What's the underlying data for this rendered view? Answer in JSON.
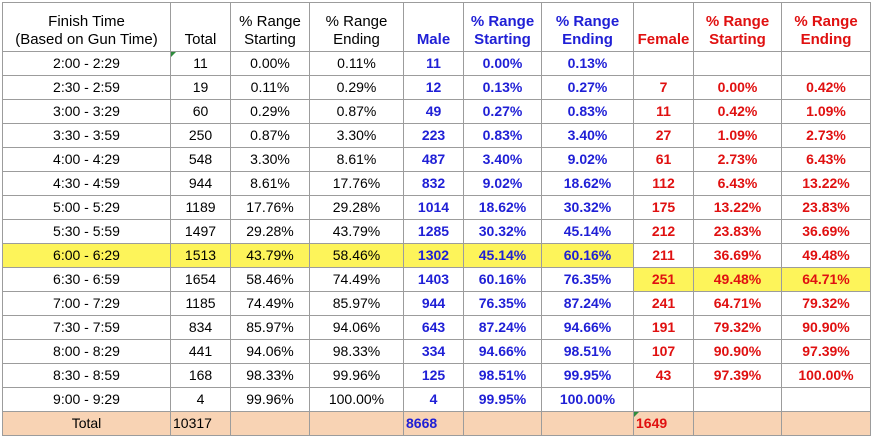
{
  "headers": {
    "finish_time_line1": "Finish Time",
    "finish_time_line2": "(Based on Gun Time)",
    "total": "Total",
    "range_start_line1": "% Range",
    "range_start_line2": "Starting",
    "range_end_line1": "% Range",
    "range_end_line2": "Ending",
    "male": "Male",
    "male_range_start_line1": "% Range",
    "male_range_start_line2": "Starting",
    "male_range_end_line1": "% Range",
    "male_range_end_line2": "Ending",
    "female": "Female",
    "female_range_start_line1": "% Range",
    "female_range_start_line2": "Starting",
    "female_range_end_line1": "% Range",
    "female_range_end_line2": "Ending"
  },
  "rows": [
    {
      "time": "2:00 - 2:29",
      "total": "11",
      "start": "0.00%",
      "end": "0.11%",
      "male": "11",
      "m_start": "0.00%",
      "m_end": "0.13%",
      "female": "",
      "f_start": "",
      "f_end": ""
    },
    {
      "time": "2:30 - 2:59",
      "total": "19",
      "start": "0.11%",
      "end": "0.29%",
      "male": "12",
      "m_start": "0.13%",
      "m_end": "0.27%",
      "female": "7",
      "f_start": "0.00%",
      "f_end": "0.42%"
    },
    {
      "time": "3:00 - 3:29",
      "total": "60",
      "start": "0.29%",
      "end": "0.87%",
      "male": "49",
      "m_start": "0.27%",
      "m_end": "0.83%",
      "female": "11",
      "f_start": "0.42%",
      "f_end": "1.09%"
    },
    {
      "time": "3:30 - 3:59",
      "total": "250",
      "start": "0.87%",
      "end": "3.30%",
      "male": "223",
      "m_start": "0.83%",
      "m_end": "3.40%",
      "female": "27",
      "f_start": "1.09%",
      "f_end": "2.73%"
    },
    {
      "time": "4:00 - 4:29",
      "total": "548",
      "start": "3.30%",
      "end": "8.61%",
      "male": "487",
      "m_start": "3.40%",
      "m_end": "9.02%",
      "female": "61",
      "f_start": "2.73%",
      "f_end": "6.43%"
    },
    {
      "time": "4:30 - 4:59",
      "total": "944",
      "start": "8.61%",
      "end": "17.76%",
      "male": "832",
      "m_start": "9.02%",
      "m_end": "18.62%",
      "female": "112",
      "f_start": "6.43%",
      "f_end": "13.22%"
    },
    {
      "time": "5:00 - 5:29",
      "total": "1189",
      "start": "17.76%",
      "end": "29.28%",
      "male": "1014",
      "m_start": "18.62%",
      "m_end": "30.32%",
      "female": "175",
      "f_start": "13.22%",
      "f_end": "23.83%"
    },
    {
      "time": "5:30 - 5:59",
      "total": "1497",
      "start": "29.28%",
      "end": "43.79%",
      "male": "1285",
      "m_start": "30.32%",
      "m_end": "45.14%",
      "female": "212",
      "f_start": "23.83%",
      "f_end": "36.69%"
    },
    {
      "time": "6:00 - 6:29",
      "total": "1513",
      "start": "43.79%",
      "end": "58.46%",
      "male": "1302",
      "m_start": "45.14%",
      "m_end": "60.16%",
      "female": "211",
      "f_start": "36.69%",
      "f_end": "49.48%"
    },
    {
      "time": "6:30 - 6:59",
      "total": "1654",
      "start": "58.46%",
      "end": "74.49%",
      "male": "1403",
      "m_start": "60.16%",
      "m_end": "76.35%",
      "female": "251",
      "f_start": "49.48%",
      "f_end": "64.71%"
    },
    {
      "time": "7:00 - 7:29",
      "total": "1185",
      "start": "74.49%",
      "end": "85.97%",
      "male": "944",
      "m_start": "76.35%",
      "m_end": "87.24%",
      "female": "241",
      "f_start": "64.71%",
      "f_end": "79.32%"
    },
    {
      "time": "7:30 - 7:59",
      "total": "834",
      "start": "85.97%",
      "end": "94.06%",
      "male": "643",
      "m_start": "87.24%",
      "m_end": "94.66%",
      "female": "191",
      "f_start": "79.32%",
      "f_end": "90.90%"
    },
    {
      "time": "8:00 - 8:29",
      "total": "441",
      "start": "94.06%",
      "end": "98.33%",
      "male": "334",
      "m_start": "94.66%",
      "m_end": "98.51%",
      "female": "107",
      "f_start": "90.90%",
      "f_end": "97.39%"
    },
    {
      "time": "8:30 - 8:59",
      "total": "168",
      "start": "98.33%",
      "end": "99.96%",
      "male": "125",
      "m_start": "98.51%",
      "m_end": "99.95%",
      "female": "43",
      "f_start": "97.39%",
      "f_end": "100.00%"
    },
    {
      "time": "9:00 - 9:29",
      "total": "4",
      "start": "99.96%",
      "end": "100.00%",
      "male": "4",
      "m_start": "99.95%",
      "m_end": "100.00%",
      "female": "",
      "f_start": "",
      "f_end": ""
    }
  ],
  "totals": {
    "label": "Total",
    "total": "10317",
    "male": "8668",
    "female": "1649"
  },
  "colors": {
    "male_text": "#1f1fd6",
    "female_text": "#e01010",
    "highlight": "#fdf45a",
    "total_row": "#f8d3b4"
  }
}
